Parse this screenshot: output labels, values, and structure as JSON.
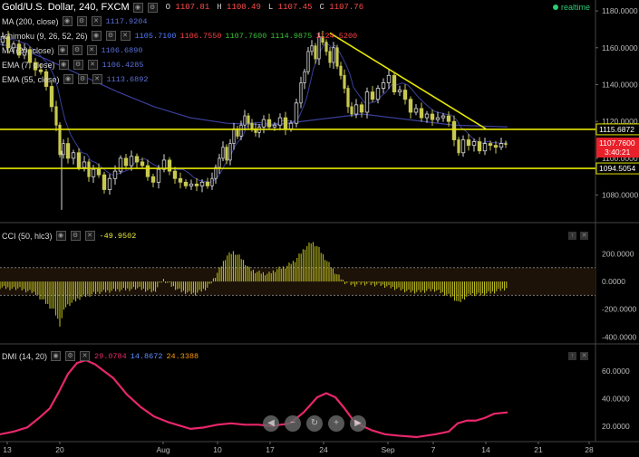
{
  "header": {
    "symbol": "Gold/U.S. Dollar, 240, FXCM",
    "o_label": "O",
    "o_value": "1107.81",
    "h_label": "H",
    "h_value": "1108.49",
    "l_label": "L",
    "l_value": "1107.45",
    "c_label": "C",
    "c_value": "1107.76",
    "realtime": "realtime"
  },
  "indicators": [
    {
      "name": "MA (200, close)",
      "values": [
        "1117.9204"
      ],
      "colors": [
        "#5b6fd6"
      ]
    },
    {
      "name": "Ichimoku (9, 26, 52, 26)",
      "values": [
        "1105.7100",
        "1106.7550",
        "1107.7600",
        "1114.9875",
        "1124.5200"
      ],
      "colors": [
        "#4f7bff",
        "#ff4040",
        "#38c238",
        "#38c238",
        "#ff4040"
      ]
    },
    {
      "name": "MA (20, close)",
      "values": [
        "1106.6890"
      ],
      "colors": [
        "#5b6fd6"
      ]
    },
    {
      "name": "EMA (7, close)",
      "values": [
        "1106.4285"
      ],
      "colors": [
        "#5b6fd6"
      ]
    },
    {
      "name": "EMA (55, close)",
      "values": [
        "1113.6892"
      ],
      "colors": [
        "#5b6fd6"
      ]
    }
  ],
  "cci": {
    "name": "CCI (50, hlc3)",
    "value": "-49.9502",
    "color": "#e8e83a"
  },
  "dmi": {
    "name": "DMI (14, 20)",
    "values": [
      "29.0784",
      "14.8672",
      "24.3388"
    ],
    "colors": [
      "#e8276b",
      "#5b8fff",
      "#ff9900"
    ]
  },
  "colors": {
    "bull": "#d8d8d8",
    "bear": "#c8c850",
    "level": "#e6e600",
    "trend": "#e6e600",
    "ma": "#3a3f9a",
    "cci": "#c8c820",
    "dmi": "#e8276b"
  },
  "chart_data": [
    {
      "type": "candlestick",
      "title": "Gold/U.S. Dollar, 240, FXCM",
      "ylim": [
        1068,
        1182
      ],
      "yticks": [
        "1180.0000",
        "1160.0000",
        "1140.0000",
        "1120.0000",
        "1100.0000",
        "1080.0000"
      ],
      "xticks": [
        "13",
        "20",
        "Aug",
        "10",
        "17",
        "24",
        "Sep",
        "7",
        "14",
        "21",
        "28"
      ],
      "levels": [
        {
          "label": "1115.6872",
          "value": 1115.7
        },
        {
          "label": "1094.5054",
          "value": 1094.5
        }
      ],
      "last_price": {
        "label": "1107.7600",
        "value": 1107.76
      },
      "countdown": "3:40:21",
      "trendline": [
        {
          "t": 364,
          "price": 1168
        },
        {
          "t": 536,
          "price": 1116
        }
      ],
      "ma200": [
        [
          0,
          1162
        ],
        [
          20,
          1160
        ],
        [
          50,
          1154
        ],
        [
          90,
          1145
        ],
        [
          130,
          1136
        ],
        [
          170,
          1128
        ],
        [
          210,
          1122
        ],
        [
          250,
          1119
        ],
        [
          300,
          1118
        ],
        [
          350,
          1121
        ],
        [
          400,
          1124
        ],
        [
          450,
          1121
        ],
        [
          500,
          1118
        ],
        [
          560,
          1117
        ]
      ],
      "close": [
        [
          0,
          1163
        ],
        [
          6,
          1166
        ],
        [
          12,
          1160
        ],
        [
          18,
          1162
        ],
        [
          24,
          1156
        ],
        [
          30,
          1159
        ],
        [
          36,
          1152
        ],
        [
          42,
          1148
        ],
        [
          48,
          1147
        ],
        [
          54,
          1139
        ],
        [
          60,
          1128
        ],
        [
          64,
          1118
        ],
        [
          68,
          1102
        ],
        [
          72,
          1108
        ],
        [
          78,
          1100
        ],
        [
          84,
          1103
        ],
        [
          90,
          1095
        ],
        [
          96,
          1098
        ],
        [
          100,
          1090
        ],
        [
          106,
          1094
        ],
        [
          112,
          1091
        ],
        [
          118,
          1083
        ],
        [
          124,
          1089
        ],
        [
          130,
          1093
        ],
        [
          136,
          1100
        ],
        [
          142,
          1096
        ],
        [
          148,
          1101
        ],
        [
          154,
          1098
        ],
        [
          160,
          1096
        ],
        [
          166,
          1090
        ],
        [
          172,
          1087
        ],
        [
          178,
          1094
        ],
        [
          184,
          1099
        ],
        [
          190,
          1093
        ],
        [
          196,
          1089
        ],
        [
          202,
          1087
        ],
        [
          208,
          1085
        ],
        [
          214,
          1086
        ],
        [
          220,
          1085
        ],
        [
          226,
          1087
        ],
        [
          232,
          1085
        ],
        [
          236,
          1089
        ],
        [
          240,
          1095
        ],
        [
          244,
          1100
        ],
        [
          248,
          1106
        ],
        [
          252,
          1099
        ],
        [
          256,
          1108
        ],
        [
          260,
          1116
        ],
        [
          264,
          1112
        ],
        [
          268,
          1118
        ],
        [
          272,
          1123
        ],
        [
          276,
          1119
        ],
        [
          280,
          1116
        ],
        [
          284,
          1114
        ],
        [
          288,
          1117
        ],
        [
          294,
          1121
        ],
        [
          300,
          1117
        ],
        [
          306,
          1118
        ],
        [
          312,
          1122
        ],
        [
          318,
          1116
        ],
        [
          324,
          1119
        ],
        [
          330,
          1130
        ],
        [
          334,
          1141
        ],
        [
          338,
          1147
        ],
        [
          342,
          1158
        ],
        [
          346,
          1161
        ],
        [
          350,
          1154
        ],
        [
          354,
          1166
        ],
        [
          358,
          1163
        ],
        [
          362,
          1158
        ],
        [
          366,
          1152
        ],
        [
          370,
          1160
        ],
        [
          374,
          1150
        ],
        [
          378,
          1145
        ],
        [
          382,
          1138
        ],
        [
          386,
          1128
        ],
        [
          390,
          1124
        ],
        [
          396,
          1129
        ],
        [
          402,
          1125
        ],
        [
          408,
          1136
        ],
        [
          414,
          1132
        ],
        [
          420,
          1138
        ],
        [
          426,
          1141
        ],
        [
          432,
          1145
        ],
        [
          438,
          1136
        ],
        [
          444,
          1137
        ],
        [
          450,
          1132
        ],
        [
          456,
          1125
        ],
        [
          462,
          1127
        ],
        [
          468,
          1122
        ],
        [
          474,
          1124
        ],
        [
          480,
          1121
        ],
        [
          486,
          1122
        ],
        [
          492,
          1123
        ],
        [
          498,
          1120
        ],
        [
          504,
          1110
        ],
        [
          508,
          1103
        ],
        [
          514,
          1110
        ],
        [
          520,
          1107
        ],
        [
          526,
          1109
        ],
        [
          532,
          1104
        ],
        [
          538,
          1108
        ],
        [
          544,
          1107
        ],
        [
          550,
          1106
        ],
        [
          556,
          1108
        ],
        [
          560,
          1107.8
        ]
      ]
    },
    {
      "type": "bar",
      "name": "CCI (50, hlc3)",
      "ylim": [
        -430,
        320
      ],
      "yticks": [
        "200.0000",
        "0.0000",
        "-200.0000",
        "-400.0000"
      ],
      "bands": [
        100,
        -100
      ],
      "x": [
        0,
        20,
        40,
        60,
        66,
        72,
        90,
        110,
        130,
        150,
        170,
        180,
        190,
        200,
        215,
        230,
        240,
        250,
        258,
        266,
        276,
        286,
        296,
        306,
        316,
        326,
        336,
        344,
        350,
        360,
        370,
        380,
        390,
        400,
        420,
        440,
        450,
        460,
        480,
        500,
        506,
        512,
        520,
        530,
        545,
        560
      ],
      "values": [
        -40,
        -55,
        -90,
        -210,
        -310,
        -180,
        -110,
        -75,
        -60,
        -50,
        -80,
        10,
        -40,
        -75,
        -95,
        -45,
        60,
        180,
        210,
        165,
        80,
        60,
        50,
        85,
        105,
        150,
        235,
        280,
        250,
        150,
        60,
        -10,
        -30,
        -20,
        -30,
        -60,
        -75,
        -80,
        -65,
        -120,
        -160,
        -125,
        -95,
        -100,
        -80,
        -50
      ]
    },
    {
      "type": "line",
      "name": "DMI (14, 20)",
      "ylim": [
        10,
        72
      ],
      "yticks": [
        "60.0000",
        "40.0000",
        "20.0000"
      ],
      "x": [
        0,
        15,
        30,
        45,
        55,
        65,
        75,
        85,
        95,
        105,
        115,
        125,
        140,
        155,
        170,
        185,
        200,
        210,
        225,
        240,
        255,
        270,
        285,
        300,
        320,
        335,
        350,
        360,
        370,
        380,
        390,
        400,
        410,
        425,
        440,
        460,
        480,
        495,
        505,
        515,
        525,
        535,
        545,
        560
      ],
      "values": [
        14,
        16,
        19,
        27,
        33,
        45,
        58,
        66,
        68,
        65,
        60,
        55,
        43,
        34,
        27,
        23,
        20,
        18,
        19,
        21,
        22,
        21,
        21,
        20,
        22,
        30,
        41,
        44,
        41,
        33,
        24,
        20,
        17,
        14,
        13,
        12,
        14,
        16,
        22,
        24,
        24,
        26,
        29,
        30
      ]
    }
  ]
}
